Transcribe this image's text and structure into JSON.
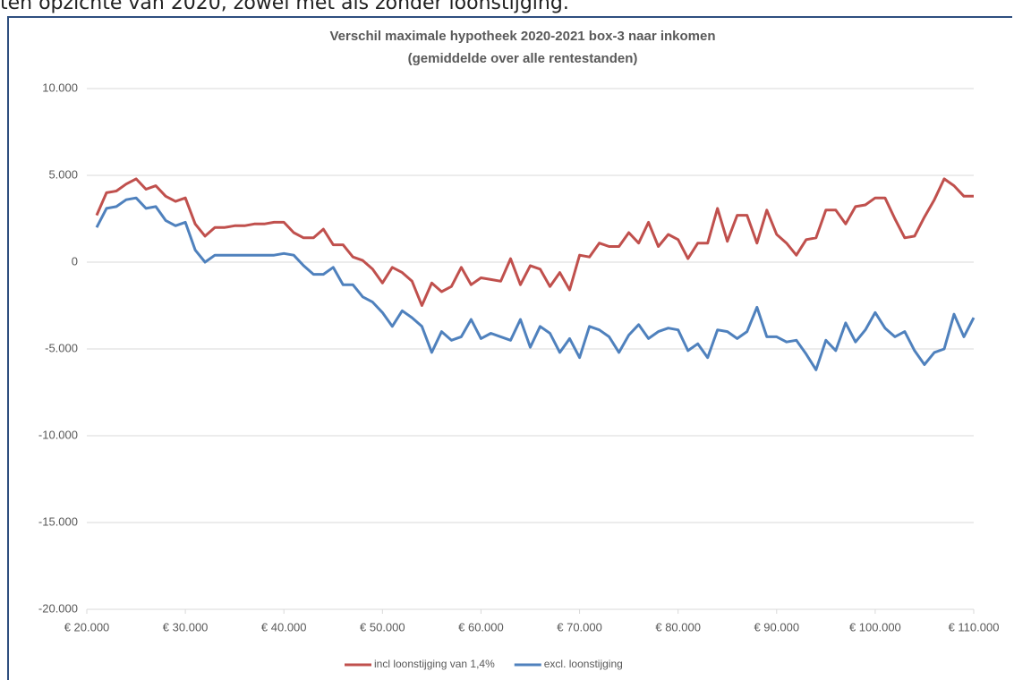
{
  "caption": "ten opzichte van 2020, zowel met als zonder loonstijging.",
  "chart_data": {
    "type": "line",
    "title": "Verschil maximale hypotheek 2020-2021 box-3 naar inkomen",
    "subtitle": "(gemiddelde over alle rentestanden)",
    "x": [
      21000,
      22000,
      23000,
      24000,
      25000,
      26000,
      27000,
      28000,
      29000,
      30000,
      31000,
      32000,
      33000,
      34000,
      35000,
      36000,
      37000,
      38000,
      39000,
      40000,
      41000,
      42000,
      43000,
      44000,
      45000,
      46000,
      47000,
      48000,
      49000,
      50000,
      51000,
      52000,
      53000,
      54000,
      55000,
      56000,
      57000,
      58000,
      59000,
      60000,
      61000,
      62000,
      63000,
      64000,
      65000,
      66000,
      67000,
      68000,
      69000,
      70000,
      71000,
      72000,
      73000,
      74000,
      75000,
      76000,
      77000,
      78000,
      79000,
      80000,
      81000,
      82000,
      83000,
      84000,
      85000,
      86000,
      87000,
      88000,
      89000,
      90000,
      91000,
      92000,
      93000,
      94000,
      95000,
      96000,
      97000,
      98000,
      99000,
      100000,
      101000,
      102000,
      103000,
      104000,
      105000,
      106000,
      107000,
      108000,
      109000,
      110000
    ],
    "series": [
      {
        "name": "incl loonstijging van 1,4%",
        "color": "#c0504d",
        "values": [
          2700,
          4000,
          4100,
          4500,
          4800,
          4200,
          4400,
          3800,
          3500,
          3700,
          2200,
          1500,
          2000,
          2000,
          2100,
          2100,
          2200,
          2200,
          2300,
          2300,
          1700,
          1400,
          1400,
          1900,
          1000,
          1000,
          300,
          100,
          -400,
          -1200,
          -300,
          -600,
          -1100,
          -2500,
          -1200,
          -1700,
          -1400,
          -300,
          -1300,
          -900,
          -1000,
          -1100,
          200,
          -1300,
          -200,
          -400,
          -1400,
          -600,
          -1600,
          400,
          300,
          1100,
          900,
          900,
          1700,
          1100,
          2300,
          900,
          1600,
          1300,
          200,
          1100,
          1100,
          3100,
          1200,
          2700,
          2700,
          1100,
          3000,
          1600,
          1100,
          400,
          1300,
          1400,
          3000,
          3000,
          2200,
          3200,
          3300,
          3700,
          3700,
          2500,
          1400,
          1500,
          2600,
          3600,
          4800,
          4400,
          3800,
          3800
        ]
      },
      {
        "name": "excl. loonstijging",
        "color": "#4f81bd",
        "values": [
          2000,
          3100,
          3200,
          3600,
          3700,
          3100,
          3200,
          2400,
          2100,
          2300,
          700,
          0,
          400,
          400,
          400,
          400,
          400,
          400,
          400,
          500,
          400,
          -200,
          -700,
          -700,
          -300,
          -1300,
          -1300,
          -2000,
          -2300,
          -2900,
          -3700,
          -2800,
          -3200,
          -3700,
          -5200,
          -4000,
          -4500,
          -4300,
          -3300,
          -4400,
          -4100,
          -4300,
          -4500,
          -3300,
          -4900,
          -3700,
          -4100,
          -5200,
          -4400,
          -5500,
          -3700,
          -3900,
          -4300,
          -5200,
          -4200,
          -3600,
          -4400,
          -4000,
          -3800,
          -3900,
          -5100,
          -4700,
          -5500,
          -3900,
          -4000,
          -4400,
          -4000,
          -2600,
          -4300,
          -4300,
          -4600,
          -4500,
          -5300,
          -6200,
          -4500,
          -5100,
          -3500,
          -4600,
          -3900,
          -2900,
          -3800,
          -4300,
          -4000,
          -5100,
          -5900,
          -5200,
          -5000,
          -3000,
          -4300,
          -3200
        ]
      }
    ],
    "xlim": [
      20000,
      110000
    ],
    "xticks": [
      {
        "value": 20000,
        "label": "€ 20.000"
      },
      {
        "value": 30000,
        "label": "€ 30.000"
      },
      {
        "value": 40000,
        "label": "€ 40.000"
      },
      {
        "value": 50000,
        "label": "€ 50.000"
      },
      {
        "value": 60000,
        "label": "€ 60.000"
      },
      {
        "value": 70000,
        "label": "€ 70.000"
      },
      {
        "value": 80000,
        "label": "€ 80.000"
      },
      {
        "value": 90000,
        "label": "€ 90.000"
      },
      {
        "value": 100000,
        "label": "€ 100.000"
      },
      {
        "value": 110000,
        "label": "€ 110.000"
      }
    ],
    "ylim": [
      -20000,
      10000
    ],
    "yticks": [
      {
        "value": -20000,
        "label": "-20.000"
      },
      {
        "value": -15000,
        "label": "-15.000"
      },
      {
        "value": -10000,
        "label": "-10.000"
      },
      {
        "value": -5000,
        "label": "-5.000"
      },
      0,
      {
        "value": 5000,
        "label": "5.000"
      },
      {
        "value": 10000,
        "label": "10.000"
      }
    ],
    "grid": true,
    "legend": "bottom"
  }
}
